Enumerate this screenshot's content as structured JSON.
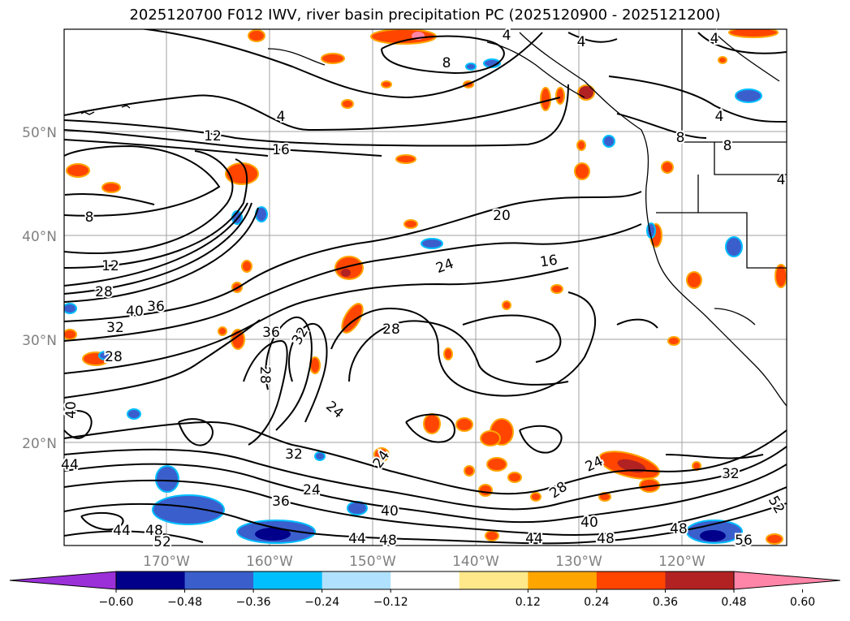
{
  "title": "2025120700 F012 IWV, river basin precipitation PC (2025120900 - 2025121200)",
  "map": {
    "lat_ticks": [
      "50°N",
      "40°N",
      "30°N",
      "20°N"
    ],
    "lon_ticks": [
      "170°W",
      "160°W",
      "150°W",
      "140°W",
      "130°W",
      "120°W"
    ],
    "grid": true,
    "contour_color": "#000000"
  },
  "iwv_contour_labels": [
    {
      "value": "4"
    },
    {
      "value": "4"
    },
    {
      "value": "4"
    },
    {
      "value": "8"
    },
    {
      "value": "4"
    },
    {
      "value": "12"
    },
    {
      "value": "16"
    },
    {
      "value": "8"
    },
    {
      "value": "20"
    },
    {
      "value": "16"
    },
    {
      "value": "24"
    },
    {
      "value": "12"
    },
    {
      "value": "28"
    },
    {
      "value": "40"
    },
    {
      "value": "36"
    },
    {
      "value": "32"
    },
    {
      "value": "28"
    },
    {
      "value": "36"
    },
    {
      "value": "32"
    },
    {
      "value": "28"
    },
    {
      "value": "28"
    },
    {
      "value": "24"
    },
    {
      "value": "32"
    },
    {
      "value": "24"
    },
    {
      "value": "24"
    },
    {
      "value": "24"
    },
    {
      "value": "28"
    },
    {
      "value": "32"
    },
    {
      "value": "36"
    },
    {
      "value": "40"
    },
    {
      "value": "40"
    },
    {
      "value": "44"
    },
    {
      "value": "44"
    },
    {
      "value": "48"
    },
    {
      "value": "48"
    },
    {
      "value": "48"
    },
    {
      "value": "52"
    },
    {
      "value": "44"
    },
    {
      "value": "48"
    },
    {
      "value": "52"
    },
    {
      "value": "56"
    },
    {
      "value": "8"
    },
    {
      "value": "8"
    },
    {
      "value": "4"
    },
    {
      "value": "4"
    },
    {
      "value": "40"
    },
    {
      "value": "44"
    }
  ],
  "colorbar": {
    "tick_labels": [
      "−0.60",
      "−0.48",
      "−0.36",
      "−0.24",
      "−0.12",
      "0.12",
      "0.24",
      "0.36",
      "0.48",
      "0.60"
    ],
    "colors": [
      "#9b30d9",
      "#00008b",
      "#3a5fcd",
      "#00bfff",
      "#b0e2ff",
      "#ffffff",
      "#ffe88a",
      "#ffa500",
      "#ff4500",
      "#b22222",
      "#ff85a8"
    ]
  }
}
